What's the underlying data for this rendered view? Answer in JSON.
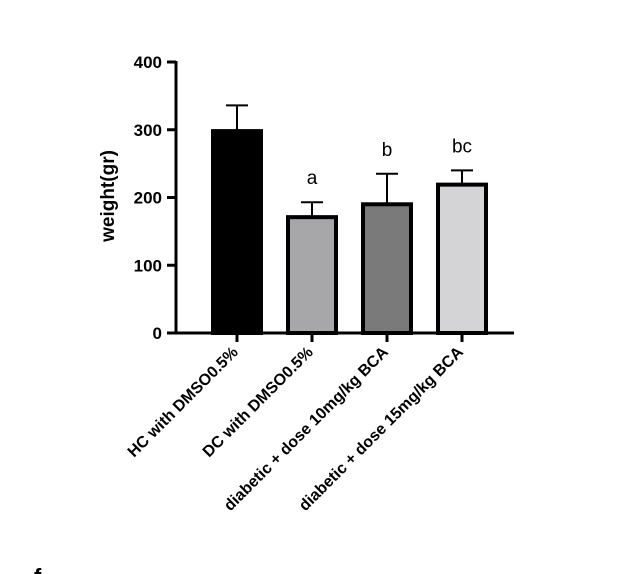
{
  "chart_data": {
    "type": "bar",
    "title": "",
    "xlabel": "",
    "ylabel": "weight(gr)",
    "ylim": [
      0,
      400
    ],
    "yticks": [
      0,
      100,
      200,
      300,
      400
    ],
    "grid": false,
    "categories": [
      "HC with DMSO0.5%",
      "DC with DMSO0.5%",
      "diabetic + dose 10mg/kg BCA",
      "diabetic + dose 15mg/kg BCA"
    ],
    "values": [
      298,
      171,
      190,
      219
    ],
    "error_upper": [
      38,
      22,
      45,
      21
    ],
    "significance_labels": [
      "",
      "a",
      "b",
      "bc"
    ],
    "bar_colors": [
      "#000000",
      "#a7a7aa",
      "#7a7a7a",
      "#d4d4d6"
    ],
    "edge_color": "#000000"
  },
  "page": {
    "corner_mark": "f"
  }
}
